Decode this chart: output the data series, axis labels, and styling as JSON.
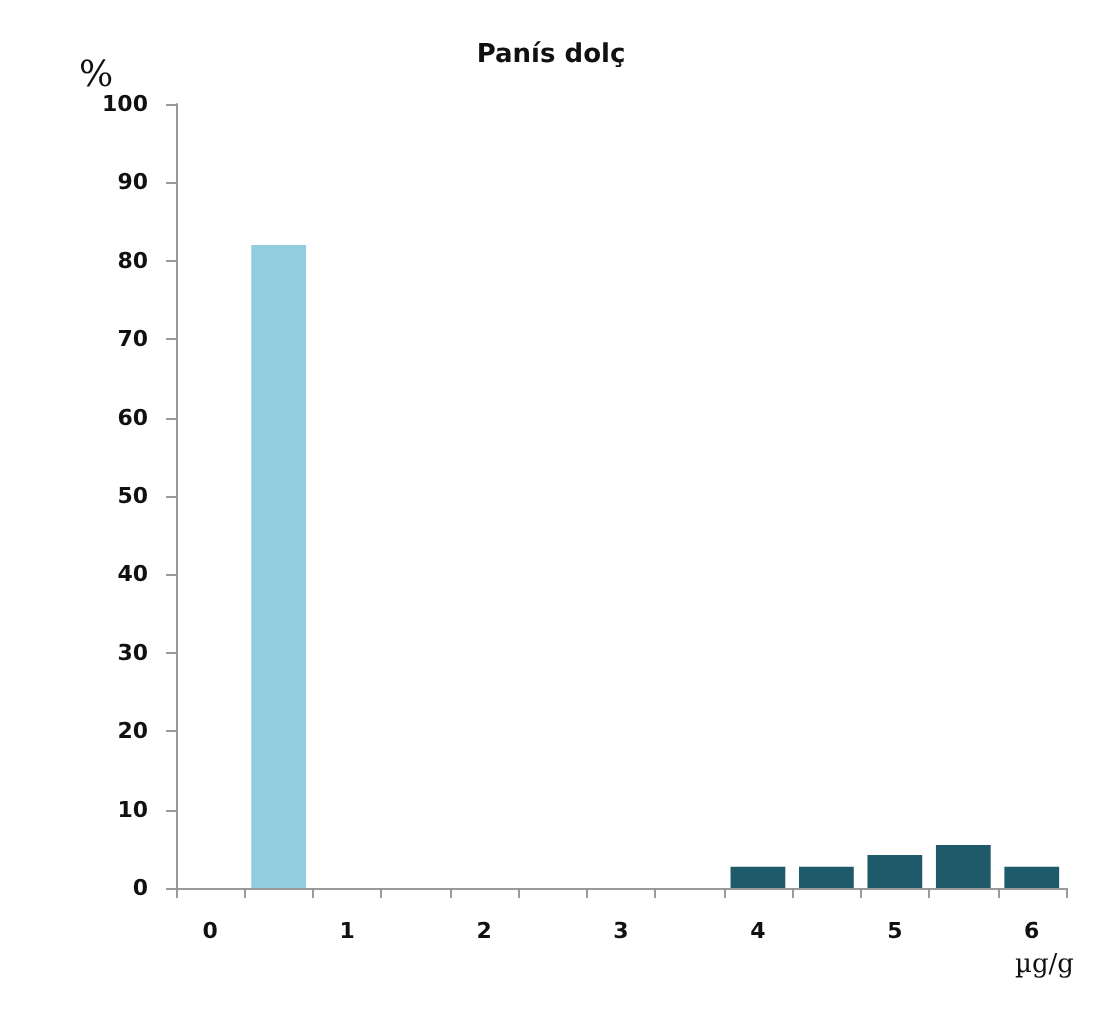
{
  "chart_data": {
    "type": "bar",
    "title": "Panís dolç",
    "ylabel": "%",
    "xlabel": "µg/g",
    "categories": [
      "0",
      null,
      "1",
      null,
      "2",
      null,
      "3",
      null,
      "4",
      null,
      "5",
      null,
      "6"
    ],
    "values": [
      0,
      82,
      0,
      0,
      0,
      0,
      0,
      0,
      2.7,
      2.7,
      4.2,
      5.5,
      2.7
    ],
    "colors": [
      "#1f5a6a",
      "#92cddf",
      "#1f5a6a",
      "#1f5a6a",
      "#1f5a6a",
      "#1f5a6a",
      "#1f5a6a",
      "#1f5a6a",
      "#1f5a6a",
      "#1f5a6a",
      "#1f5a6a",
      "#1f5a6a",
      "#1f5a6a"
    ],
    "ylim": [
      0,
      100
    ],
    "yticks": [
      0,
      10,
      20,
      30,
      40,
      50,
      60,
      70,
      80,
      90,
      100
    ],
    "grid": false
  }
}
